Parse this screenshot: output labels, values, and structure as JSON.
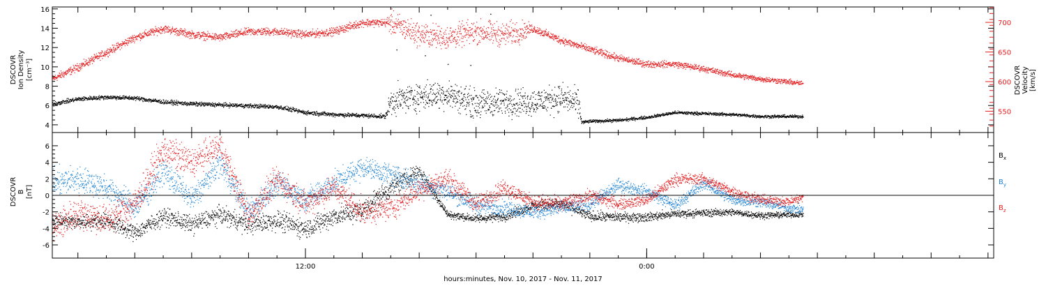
{
  "colors": {
    "black": "#000000",
    "blue": "#1f83d4",
    "red": "#e41a1c"
  },
  "xaxis": {
    "label": "hours:minutes, Nov. 10, 2017 - Nov. 11, 2017",
    "ticks": [
      {
        "hour": 12,
        "label": "12:00"
      },
      {
        "hour": 24,
        "label": "0:00"
      }
    ],
    "range_hours": [
      3.1,
      36.2
    ],
    "data_end_hour": 29.5
  },
  "chart_data": [
    {
      "type": "scatter",
      "panel": "top",
      "ylabel": [
        "DSCOVR",
        "Ion Density",
        "[cm⁻³]"
      ],
      "ylim": [
        3.2,
        16.2
      ],
      "yticks": [
        4,
        6,
        8,
        10,
        12,
        14,
        16
      ],
      "y2label": [
        "DSCOVR",
        "Velocity",
        "[km/s]"
      ],
      "y2lim": [
        514,
        726
      ],
      "y2ticks": [
        550,
        600,
        650,
        700
      ],
      "series": [
        {
          "name": "Ion Density",
          "axis": "left",
          "color": "#000000",
          "points": [
            [
              3.1,
              6.2
            ],
            [
              4,
              6.7
            ],
            [
              5,
              6.9
            ],
            [
              6,
              6.8
            ],
            [
              7,
              6.4
            ],
            [
              8,
              6.2
            ],
            [
              9,
              6.1
            ],
            [
              10,
              6
            ],
            [
              11,
              5.9
            ],
            [
              12,
              5.3
            ],
            [
              13,
              5.1
            ],
            [
              14,
              5
            ],
            [
              14.8,
              4.9
            ],
            [
              15,
              6.5
            ],
            [
              16,
              7
            ],
            [
              17,
              7.2
            ],
            [
              18,
              6.2
            ],
            [
              19,
              6.4
            ],
            [
              20,
              6.4
            ],
            [
              21,
              6.8
            ],
            [
              21.6,
              6.2
            ],
            [
              21.7,
              4.3
            ],
            [
              22,
              4.4
            ],
            [
              23,
              4.5
            ],
            [
              24,
              4.8
            ],
            [
              25,
              5.3
            ],
            [
              26,
              5.2
            ],
            [
              27,
              5.1
            ],
            [
              28,
              4.9
            ],
            [
              29,
              4.9
            ],
            [
              29.5,
              4.9
            ]
          ],
          "scatter_band": [
            [
              3.1,
              0.2
            ],
            [
              14.8,
              0.2
            ],
            [
              15,
              1.3
            ],
            [
              21.6,
              1.3
            ],
            [
              21.7,
              0.15
            ],
            [
              29.5,
              0.15
            ]
          ],
          "spikes": [
            [
              15.2,
              11.8
            ],
            [
              16.2,
              11.2
            ],
            [
              17,
              10.3
            ],
            [
              17.8,
              10.2
            ],
            [
              18.5,
              15.5
            ],
            [
              16.4,
              15.4
            ]
          ]
        },
        {
          "name": "Velocity",
          "axis": "right",
          "color": "#e41a1c",
          "points": [
            [
              3.1,
              605
            ],
            [
              4,
              625
            ],
            [
              5,
              650
            ],
            [
              6,
              675
            ],
            [
              7,
              690
            ],
            [
              8,
              680
            ],
            [
              9,
              675
            ],
            [
              10,
              685
            ],
            [
              11,
              685
            ],
            [
              12,
              680
            ],
            [
              13,
              685
            ],
            [
              14,
              700
            ],
            [
              15,
              700
            ],
            [
              15.5,
              690
            ],
            [
              16,
              680
            ],
            [
              17,
              675
            ],
            [
              18,
              685
            ],
            [
              19,
              680
            ],
            [
              20,
              690
            ],
            [
              21,
              670
            ],
            [
              22,
              655
            ],
            [
              23,
              640
            ],
            [
              24,
              630
            ],
            [
              25,
              630
            ],
            [
              26,
              622
            ],
            [
              27,
              612
            ],
            [
              28,
              605
            ],
            [
              29,
              600
            ],
            [
              29.5,
              597
            ]
          ],
          "scatter_band": [
            [
              3.1,
              6
            ],
            [
              14.8,
              6
            ],
            [
              15,
              18
            ],
            [
              19.5,
              18
            ],
            [
              20,
              6
            ],
            [
              29.5,
              4
            ]
          ]
        }
      ]
    },
    {
      "type": "scatter",
      "panel": "bottom",
      "ylabel": [
        "DSCOVR",
        "B",
        "[nT]"
      ],
      "ylim": [
        -7.6,
        7.6
      ],
      "yticks": [
        -6,
        -4,
        -2,
        0,
        2,
        4,
        6
      ],
      "zero_line": true,
      "series": [
        {
          "name": "Bx",
          "color": "#000000",
          "points": [
            [
              3.1,
              -3
            ],
            [
              4,
              -3.2
            ],
            [
              5,
              -3
            ],
            [
              6,
              -4.5
            ],
            [
              7,
              -2.5
            ],
            [
              8,
              -3.5
            ],
            [
              9,
              -2.3
            ],
            [
              10,
              -3.5
            ],
            [
              11,
              -3
            ],
            [
              12,
              -4
            ],
            [
              13,
              -2.5
            ],
            [
              14,
              -1.8
            ],
            [
              15,
              1
            ],
            [
              16,
              3
            ],
            [
              17,
              -2.3
            ],
            [
              18,
              -2.8
            ],
            [
              19,
              -2.5
            ],
            [
              20,
              -1.2
            ],
            [
              21,
              -1
            ],
            [
              22,
              -2.5
            ],
            [
              23,
              -2.6
            ],
            [
              24,
              -2.6
            ],
            [
              25,
              -2.2
            ],
            [
              26,
              -2.1
            ],
            [
              27,
              -2
            ],
            [
              28,
              -2.4
            ],
            [
              29,
              -2.3
            ],
            [
              29.5,
              -2.3
            ]
          ],
          "scatter_band": [
            [
              3.1,
              0.8
            ],
            [
              15,
              1.2
            ],
            [
              17,
              0.4
            ],
            [
              21,
              0.6
            ],
            [
              29.5,
              0.3
            ]
          ]
        },
        {
          "name": "By",
          "color": "#1f83d4",
          "points": [
            [
              3.1,
              1.5
            ],
            [
              4,
              2
            ],
            [
              5,
              1
            ],
            [
              6,
              -1.5
            ],
            [
              7,
              3
            ],
            [
              8,
              -0.5
            ],
            [
              9,
              4
            ],
            [
              10,
              -2
            ],
            [
              11,
              1.5
            ],
            [
              12,
              -0.5
            ],
            [
              13,
              1.5
            ],
            [
              14,
              3.5
            ],
            [
              15,
              2.5
            ],
            [
              16,
              1.5
            ],
            [
              17,
              0.5
            ],
            [
              18,
              -1.2
            ],
            [
              19,
              -1.5
            ],
            [
              20,
              -2
            ],
            [
              21,
              -1.5
            ],
            [
              22,
              -1
            ],
            [
              23,
              1.3
            ],
            [
              24,
              0.5
            ],
            [
              25,
              -1.2
            ],
            [
              26,
              1.5
            ],
            [
              27,
              -0.5
            ],
            [
              28,
              -0.8
            ],
            [
              29,
              -1.5
            ],
            [
              29.5,
              -1.7
            ]
          ],
          "scatter_band": [
            [
              3.1,
              1.5
            ],
            [
              15,
              1.2
            ],
            [
              20,
              0.8
            ],
            [
              29.5,
              0.5
            ]
          ]
        },
        {
          "name": "Bz",
          "color": "#e41a1c",
          "points": [
            [
              3.1,
              -4
            ],
            [
              4,
              -2
            ],
            [
              5,
              -3
            ],
            [
              6,
              -1
            ],
            [
              7,
              5.5
            ],
            [
              8,
              4
            ],
            [
              9,
              6
            ],
            [
              10,
              -2.5
            ],
            [
              11,
              2
            ],
            [
              12,
              -1
            ],
            [
              13,
              1
            ],
            [
              14,
              -2
            ],
            [
              15,
              -1.5
            ],
            [
              16,
              0.8
            ],
            [
              17,
              2
            ],
            [
              18,
              -1
            ],
            [
              19,
              1
            ],
            [
              20,
              -0.8
            ],
            [
              21,
              -1
            ],
            [
              22,
              0
            ],
            [
              23,
              -1
            ],
            [
              24,
              -0.5
            ],
            [
              25,
              2
            ],
            [
              26,
              2
            ],
            [
              27,
              0.5
            ],
            [
              28,
              -0.5
            ],
            [
              29,
              -0.7
            ],
            [
              29.5,
              -0.2
            ]
          ],
          "scatter_band": [
            [
              3.1,
              1.8
            ],
            [
              15,
              1.3
            ],
            [
              20,
              0.8
            ],
            [
              29.5,
              0.5
            ]
          ]
        }
      ],
      "legend": [
        {
          "label": "B",
          "sub": "x",
          "color": "#000000",
          "placement": "right"
        },
        {
          "label": "B",
          "sub": "y",
          "color": "#1f83d4",
          "placement": "right"
        },
        {
          "label": "B",
          "sub": "z",
          "color": "#e41a1c",
          "placement": "right"
        }
      ]
    }
  ]
}
